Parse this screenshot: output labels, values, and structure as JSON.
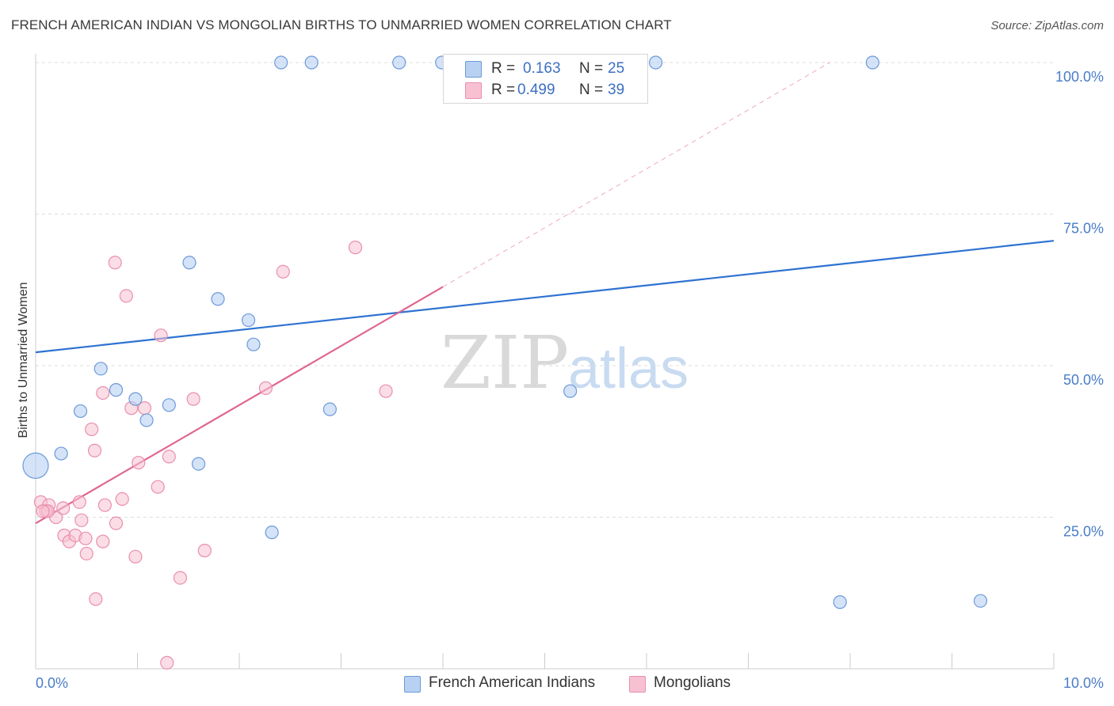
{
  "title": "FRENCH AMERICAN INDIAN VS MONGOLIAN BIRTHS TO UNMARRIED WOMEN CORRELATION CHART",
  "source": "Source: ZipAtlas.com",
  "watermark": {
    "zip": "ZIP",
    "atlas": "atlas"
  },
  "legend": {
    "rows": [
      {
        "r_label": "R =",
        "r_value": "0.163",
        "n_label": "N =",
        "n_value": "25"
      },
      {
        "r_label": "R =",
        "r_value": "0.499",
        "n_label": "N =",
        "n_value": "39"
      }
    ]
  },
  "bottom_legend": {
    "series1": "French American Indians",
    "series2": "Mongolians"
  },
  "colors": {
    "blue_fill": "#b8d1f3",
    "blue_stroke": "#6c9ad8",
    "blue_line": "#2e72d2",
    "pink_fill": "#f7c1d2",
    "pink_stroke": "#e98fae",
    "pink_line": "#e06690",
    "axis_text": "#4a7cc8",
    "grid": "#dddddd"
  },
  "chart_data": {
    "type": "scatter",
    "title": "FRENCH AMERICAN INDIAN VS MONGOLIAN BIRTHS TO UNMARRIED WOMEN CORRELATION CHART",
    "xlabel": "",
    "ylabel": "Births to Unmarried Women",
    "xlim": [
      0,
      10
    ],
    "ylim": [
      0,
      100
    ],
    "x_tick_labels": [
      "0.0%",
      "10.0%"
    ],
    "y_tick_labels": [
      "25.0%",
      "50.0%",
      "75.0%",
      "100.0%"
    ],
    "y_ticks": [
      25,
      50,
      75,
      100
    ],
    "grid": "horizontal dashed",
    "legend_position": "top-center",
    "series": [
      {
        "name": "French American Indians",
        "r": 0.163,
        "n": 25,
        "points": [
          [
            0.0,
            33.5
          ],
          [
            0.25,
            35.5
          ],
          [
            0.44,
            42.5
          ],
          [
            0.64,
            49.5
          ],
          [
            0.79,
            46
          ],
          [
            0.98,
            44.5
          ],
          [
            1.09,
            41
          ],
          [
            1.31,
            43.5
          ],
          [
            1.51,
            67
          ],
          [
            1.79,
            61
          ],
          [
            2.09,
            57.5
          ],
          [
            2.14,
            53.5
          ],
          [
            1.6,
            33.8
          ],
          [
            2.32,
            22.5
          ],
          [
            2.41,
            100
          ],
          [
            2.71,
            100
          ],
          [
            2.89,
            42.8
          ],
          [
            3.57,
            100
          ],
          [
            3.99,
            100
          ],
          [
            5.25,
            45.8
          ],
          [
            6.09,
            100
          ],
          [
            8.22,
            100
          ],
          [
            7.9,
            11
          ],
          [
            9.28,
            11.2
          ],
          [
            5.7,
            100
          ]
        ],
        "trend": {
          "x": [
            0,
            10
          ],
          "y": [
            52.2,
            70.6
          ]
        }
      },
      {
        "name": "Mongolians",
        "r": 0.499,
        "n": 39,
        "points": [
          [
            0.05,
            27.5
          ],
          [
            0.13,
            27
          ],
          [
            0.1,
            26
          ],
          [
            0.2,
            25
          ],
          [
            0.27,
            26.5
          ],
          [
            0.28,
            22
          ],
          [
            0.33,
            21
          ],
          [
            0.39,
            22
          ],
          [
            0.43,
            27.5
          ],
          [
            0.45,
            24.5
          ],
          [
            0.49,
            21.5
          ],
          [
            0.5,
            19
          ],
          [
            0.55,
            39.5
          ],
          [
            0.59,
            11.5
          ],
          [
            0.66,
            45.5
          ],
          [
            0.66,
            21
          ],
          [
            0.68,
            27
          ],
          [
            0.79,
            24
          ],
          [
            0.78,
            67
          ],
          [
            0.85,
            28
          ],
          [
            0.89,
            61.5
          ],
          [
            0.94,
            43
          ],
          [
            0.98,
            18.5
          ],
          [
            1.01,
            34
          ],
          [
            1.07,
            43
          ],
          [
            1.2,
            30
          ],
          [
            1.23,
            55
          ],
          [
            1.29,
            1
          ],
          [
            1.31,
            35
          ],
          [
            1.42,
            15
          ],
          [
            1.55,
            44.5
          ],
          [
            1.66,
            19.5
          ],
          [
            2.26,
            46.3
          ],
          [
            2.43,
            65.5
          ],
          [
            3.14,
            69.5
          ],
          [
            3.44,
            45.8
          ],
          [
            0.58,
            36
          ],
          [
            0.12,
            26
          ],
          [
            0.07,
            26
          ]
        ],
        "trend": {
          "x": [
            0,
            4.0
          ],
          "y": [
            24.0,
            63.0
          ]
        },
        "trend_extension": {
          "x": [
            4.0,
            7.8
          ],
          "y": [
            63.0,
            100
          ]
        }
      }
    ]
  }
}
